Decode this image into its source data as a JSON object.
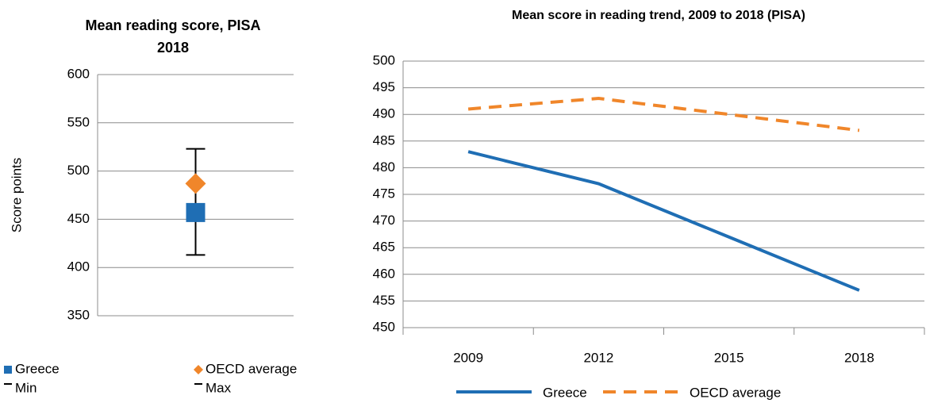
{
  "chart_data": [
    {
      "type": "dot",
      "title": "Mean reading score, PISA 2018",
      "ylabel": "Score points",
      "ylim": [
        350,
        600
      ],
      "yticks": [
        350,
        400,
        450,
        500,
        550,
        600
      ],
      "grid": true,
      "series": [
        {
          "name": "Greece",
          "color": "#1f6eb4",
          "marker": "square",
          "values": [
            457
          ]
        },
        {
          "name": "OECD average",
          "color": "#f0862a",
          "marker": "diamond",
          "values": [
            487
          ]
        },
        {
          "name": "Min",
          "color": "#000000",
          "marker": "dash",
          "values": [
            413
          ]
        },
        {
          "name": "Max",
          "color": "#000000",
          "marker": "dash",
          "values": [
            523
          ]
        }
      ]
    },
    {
      "type": "line",
      "title": "Mean score in reading trend, 2009 to 2018 (PISA)",
      "categories": [
        "2009",
        "2012",
        "2015",
        "2018"
      ],
      "ylim": [
        450,
        500
      ],
      "yticks": [
        450,
        455,
        460,
        465,
        470,
        475,
        480,
        485,
        490,
        495,
        500
      ],
      "grid": true,
      "series": [
        {
          "name": "Greece",
          "color": "#1f6eb4",
          "dash": false,
          "values": [
            483,
            477,
            467,
            457
          ]
        },
        {
          "name": "OECD average",
          "color": "#f0862a",
          "dash": true,
          "values": [
            491,
            493,
            490,
            487
          ]
        }
      ]
    }
  ]
}
